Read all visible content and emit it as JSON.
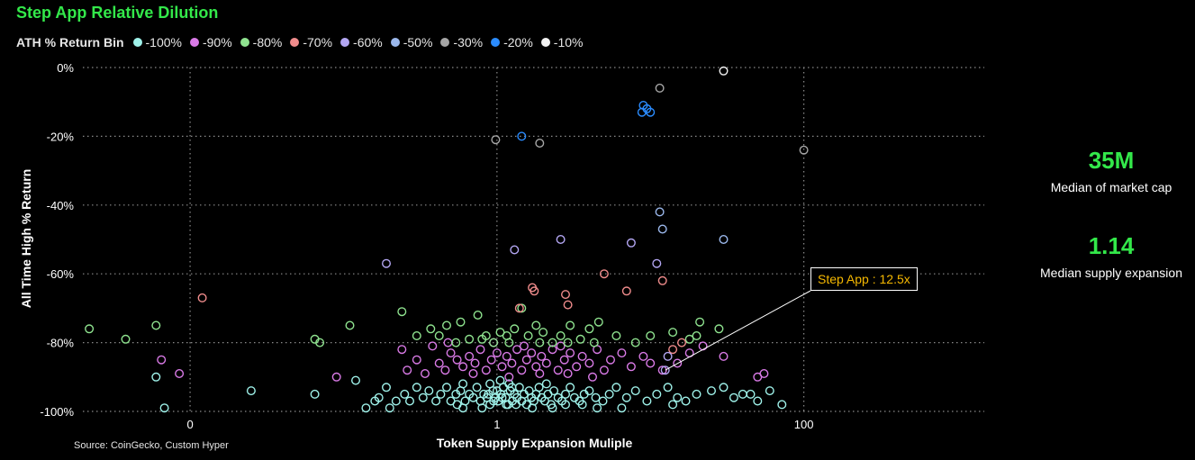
{
  "title": "Step App Relative Dilution",
  "legend": {
    "title": "ATH % Return Bin",
    "items": [
      {
        "label": "-100%",
        "color": "#9ff2ea"
      },
      {
        "label": "-90%",
        "color": "#d97ae6"
      },
      {
        "label": "-80%",
        "color": "#8fe38f"
      },
      {
        "label": "-70%",
        "color": "#f08c8c"
      },
      {
        "label": "-60%",
        "color": "#b3a6f2"
      },
      {
        "label": "-50%",
        "color": "#9bb8ec"
      },
      {
        "label": "-30%",
        "color": "#a6a6a6"
      },
      {
        "label": "-20%",
        "color": "#2b8cff"
      },
      {
        "label": "-10%",
        "color": "#f2f2f2"
      }
    ]
  },
  "kpis": [
    {
      "value": "35M",
      "label": "Median of market cap"
    },
    {
      "value": "1.14",
      "label": "Median supply expansion"
    }
  ],
  "source": "Source: CoinGecko, Custom Hyper",
  "annotation": {
    "label": "Step App : 12.5x",
    "x": 12.5,
    "y": -88
  },
  "chart_data": {
    "type": "scatter",
    "title": "Step App Relative Dilution",
    "xlabel": "Token Supply Expansion Muliple",
    "ylabel": "All Time High % Return",
    "x_scale": "log",
    "xlim": [
      0.002,
      1500
    ],
    "ylim": [
      -100,
      0
    ],
    "x_ticks": [
      {
        "value": 0.01,
        "label": "0"
      },
      {
        "value": 1,
        "label": "1"
      },
      {
        "value": 100,
        "label": "100"
      }
    ],
    "y_ticks": [
      {
        "value": 0,
        "label": "0%"
      },
      {
        "value": -20,
        "label": "-20%"
      },
      {
        "value": -40,
        "label": "-40%"
      },
      {
        "value": -60,
        "label": "-60%"
      },
      {
        "value": -80,
        "label": "-80%"
      },
      {
        "value": -100,
        "label": "-100%"
      }
    ],
    "grid": true,
    "legend_position": "top-left",
    "series": [
      {
        "name": "-100%",
        "color": "#9ff2ea",
        "points": [
          [
            0.065,
            -95
          ],
          [
            0.17,
            -96
          ],
          [
            0.19,
            -93
          ],
          [
            0.22,
            -97
          ],
          [
            0.25,
            -95
          ],
          [
            0.27,
            -97
          ],
          [
            0.3,
            -93
          ],
          [
            0.33,
            -96
          ],
          [
            0.36,
            -94
          ],
          [
            0.4,
            -97
          ],
          [
            0.43,
            -95
          ],
          [
            0.47,
            -93
          ],
          [
            0.5,
            -97
          ],
          [
            0.54,
            -95
          ],
          [
            0.58,
            -94
          ],
          [
            0.62,
            -97
          ],
          [
            0.66,
            -95
          ],
          [
            0.7,
            -96
          ],
          [
            0.74,
            -93
          ],
          [
            0.78,
            -97
          ],
          [
            0.82,
            -95
          ],
          [
            0.86,
            -96
          ],
          [
            0.9,
            -98
          ],
          [
            0.94,
            -94
          ],
          [
            0.98,
            -96
          ],
          [
            1.02,
            -97
          ],
          [
            1.06,
            -95
          ],
          [
            1.1,
            -93
          ],
          [
            1.14,
            -96
          ],
          [
            1.18,
            -98
          ],
          [
            1.22,
            -94
          ],
          [
            1.26,
            -97
          ],
          [
            1.3,
            -95
          ],
          [
            1.35,
            -96
          ],
          [
            1.4,
            -93
          ],
          [
            1.45,
            -97
          ],
          [
            1.5,
            -95
          ],
          [
            1.56,
            -98
          ],
          [
            1.62,
            -94
          ],
          [
            1.68,
            -96
          ],
          [
            1.74,
            -97
          ],
          [
            1.8,
            -95
          ],
          [
            1.88,
            -93
          ],
          [
            1.96,
            -96
          ],
          [
            2.05,
            -97
          ],
          [
            2.15,
            -95
          ],
          [
            2.25,
            -98
          ],
          [
            2.35,
            -94
          ],
          [
            2.5,
            -96
          ],
          [
            2.65,
            -97
          ],
          [
            2.8,
            -95
          ],
          [
            3.0,
            -93
          ],
          [
            3.2,
            -96
          ],
          [
            3.45,
            -97
          ],
          [
            3.7,
            -95
          ],
          [
            4.0,
            -94
          ],
          [
            4.4,
            -96
          ],
          [
            4.9,
            -97
          ],
          [
            5.4,
            -95
          ],
          [
            6.0,
            -93
          ],
          [
            7.0,
            -96
          ],
          [
            8.0,
            -94
          ],
          [
            9.5,
            -97
          ],
          [
            11,
            -95
          ],
          [
            13,
            -93
          ],
          [
            15,
            -96
          ],
          [
            17,
            -97
          ],
          [
            20,
            -95
          ],
          [
            25,
            -94
          ],
          [
            30,
            -93
          ],
          [
            35,
            -96
          ],
          [
            40,
            -95
          ],
          [
            50,
            -97
          ],
          [
            60,
            -94
          ],
          [
            0.9,
            -92
          ],
          [
            1.05,
            -91
          ],
          [
            1.2,
            -92
          ],
          [
            1.15,
            -98
          ],
          [
            0.95,
            -97
          ],
          [
            1.25,
            -93
          ],
          [
            1.33,
            -98
          ],
          [
            0.88,
            -95
          ],
          [
            1.0,
            -94
          ],
          [
            1.08,
            -96
          ],
          [
            0.55,
            -98
          ],
          [
            0.6,
            -92
          ],
          [
            2.1,
            -92
          ],
          [
            2.8,
            -98
          ],
          [
            3.6,
            -98
          ],
          [
            0.006,
            -90
          ],
          [
            0.0068,
            -99
          ],
          [
            0.025,
            -94
          ],
          [
            0.12,
            -91
          ],
          [
            0.14,
            -99
          ],
          [
            0.16,
            -97
          ],
          [
            0.2,
            -99
          ],
          [
            0.6,
            -99
          ],
          [
            0.8,
            -99
          ],
          [
            1.7,
            -99
          ],
          [
            2.3,
            -99
          ],
          [
            4.5,
            -99
          ],
          [
            6.5,
            -99
          ],
          [
            14,
            -98
          ],
          [
            45,
            -95
          ],
          [
            72,
            -98
          ]
        ]
      },
      {
        "name": "-90%",
        "color": "#d97ae6",
        "points": [
          [
            0.0065,
            -85
          ],
          [
            0.0085,
            -89
          ],
          [
            0.09,
            -90
          ],
          [
            0.24,
            -82
          ],
          [
            0.26,
            -88
          ],
          [
            0.3,
            -85
          ],
          [
            0.34,
            -89
          ],
          [
            0.38,
            -81
          ],
          [
            0.42,
            -86
          ],
          [
            0.46,
            -88
          ],
          [
            0.5,
            -83
          ],
          [
            0.55,
            -85
          ],
          [
            0.6,
            -87
          ],
          [
            0.66,
            -84
          ],
          [
            0.72,
            -86
          ],
          [
            0.78,
            -82
          ],
          [
            0.85,
            -88
          ],
          [
            0.92,
            -85
          ],
          [
            1.0,
            -83
          ],
          [
            1.08,
            -87
          ],
          [
            1.16,
            -84
          ],
          [
            1.25,
            -86
          ],
          [
            1.35,
            -82
          ],
          [
            1.45,
            -88
          ],
          [
            1.56,
            -85
          ],
          [
            1.68,
            -83
          ],
          [
            1.8,
            -87
          ],
          [
            1.95,
            -84
          ],
          [
            2.1,
            -86
          ],
          [
            2.3,
            -82
          ],
          [
            2.5,
            -88
          ],
          [
            2.75,
            -85
          ],
          [
            3.0,
            -83
          ],
          [
            3.3,
            -87
          ],
          [
            3.6,
            -84
          ],
          [
            4.0,
            -86
          ],
          [
            4.5,
            -82
          ],
          [
            5,
            -88
          ],
          [
            5.5,
            -85
          ],
          [
            6.5,
            -83
          ],
          [
            7.5,
            -87
          ],
          [
            9,
            -84
          ],
          [
            10,
            -86
          ],
          [
            12,
            -88
          ],
          [
            15,
            -86
          ],
          [
            18,
            -83
          ],
          [
            22,
            -81
          ],
          [
            30,
            -84
          ],
          [
            50,
            -90
          ],
          [
            55,
            -89
          ],
          [
            0.7,
            -89
          ],
          [
            1.2,
            -90
          ],
          [
            1.9,
            -89
          ],
          [
            2.9,
            -89
          ],
          [
            4.2,
            -90
          ],
          [
            0.48,
            -80
          ],
          [
            0.95,
            -80
          ],
          [
            1.5,
            -81
          ],
          [
            2.6,
            -81
          ]
        ]
      },
      {
        "name": "-80%",
        "color": "#8fe38f",
        "points": [
          [
            0.0022,
            -76
          ],
          [
            0.0038,
            -79
          ],
          [
            0.006,
            -75
          ],
          [
            0.11,
            -75
          ],
          [
            0.065,
            -79
          ],
          [
            0.07,
            -80
          ],
          [
            0.24,
            -71
          ],
          [
            0.3,
            -78
          ],
          [
            0.37,
            -76
          ],
          [
            0.42,
            -78
          ],
          [
            0.47,
            -75
          ],
          [
            0.58,
            -74
          ],
          [
            0.66,
            -79
          ],
          [
            0.75,
            -72
          ],
          [
            0.85,
            -78
          ],
          [
            0.95,
            -80
          ],
          [
            1.05,
            -77
          ],
          [
            1.16,
            -78
          ],
          [
            1.3,
            -76
          ],
          [
            1.45,
            -70
          ],
          [
            1.6,
            -78
          ],
          [
            1.8,
            -75
          ],
          [
            2.0,
            -77
          ],
          [
            2.3,
            -80
          ],
          [
            2.6,
            -78
          ],
          [
            3.0,
            -75
          ],
          [
            3.5,
            -79
          ],
          [
            4.0,
            -76
          ],
          [
            4.6,
            -74
          ],
          [
            6,
            -78
          ],
          [
            8,
            -80
          ],
          [
            10,
            -78
          ],
          [
            14,
            -77
          ],
          [
            18,
            -79
          ],
          [
            20,
            -78
          ],
          [
            21,
            -74
          ],
          [
            28,
            -76
          ],
          [
            0.54,
            -80
          ],
          [
            0.8,
            -79
          ],
          [
            1.2,
            -80
          ],
          [
            1.9,
            -80
          ],
          [
            2.9,
            -80
          ],
          [
            4.3,
            -80
          ]
        ]
      },
      {
        "name": "-70%",
        "color": "#f08c8c",
        "points": [
          [
            0.012,
            -67
          ],
          [
            1.4,
            -70
          ],
          [
            1.7,
            -64
          ],
          [
            1.75,
            -65
          ],
          [
            2.8,
            -66
          ],
          [
            2.9,
            -69
          ],
          [
            5,
            -60
          ],
          [
            7,
            -65
          ],
          [
            12,
            -62
          ],
          [
            14,
            -82
          ],
          [
            16,
            -80
          ]
        ]
      },
      {
        "name": "-60%",
        "color": "#b3a6f2",
        "points": [
          [
            0.19,
            -57
          ],
          [
            1.3,
            -53
          ],
          [
            2.6,
            -50
          ],
          [
            7.5,
            -51
          ],
          [
            11,
            -57
          ],
          [
            12.5,
            -88
          ],
          [
            13,
            -84
          ]
        ]
      },
      {
        "name": "-50%",
        "color": "#9bb8ec",
        "points": [
          [
            11.5,
            -42
          ],
          [
            12,
            -47
          ],
          [
            30,
            -50
          ]
        ]
      },
      {
        "name": "-30%",
        "color": "#a6a6a6",
        "points": [
          [
            0.98,
            -21
          ],
          [
            1.9,
            -22
          ],
          [
            11.5,
            -6
          ],
          [
            100,
            -24
          ]
        ]
      },
      {
        "name": "-20%",
        "color": "#2b8cff",
        "points": [
          [
            1.45,
            -20
          ],
          [
            9,
            -11
          ],
          [
            8.8,
            -13
          ],
          [
            9.5,
            -12
          ],
          [
            10,
            -13
          ]
        ]
      },
      {
        "name": "-10%",
        "color": "#f2f2f2",
        "points": [
          [
            30,
            -1
          ]
        ]
      }
    ]
  }
}
